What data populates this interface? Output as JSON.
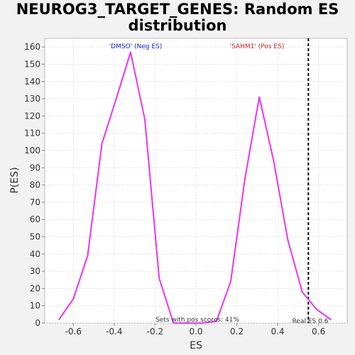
{
  "chart_data": {
    "type": "line",
    "title_line1": "NEUROG3_TARGET_GENES: Random ES",
    "title_line2": "distribution",
    "xlabel": "ES",
    "ylabel": "P(ES)",
    "xlim": [
      -0.74,
      0.74
    ],
    "ylim": [
      0,
      165
    ],
    "xticks": [
      -0.6,
      -0.4,
      -0.2,
      0.0,
      0.2,
      0.4,
      0.6
    ],
    "xtick_labels": [
      "-0.6",
      "-0.4",
      "-0.2",
      "0.0",
      "0.2",
      "0.4",
      "0.6"
    ],
    "yticks": [
      0,
      10,
      20,
      30,
      40,
      50,
      60,
      70,
      80,
      90,
      100,
      110,
      120,
      130,
      140,
      150,
      160
    ],
    "grid": true,
    "series": [
      {
        "color": "#ee33ee",
        "x": [
          -0.67,
          -0.6,
          -0.53,
          -0.46,
          -0.39,
          -0.32,
          -0.25,
          -0.18,
          -0.11,
          -0.04,
          0.03,
          0.1,
          0.17,
          0.24,
          0.31,
          0.38,
          0.45,
          0.52,
          0.59,
          0.66
        ],
        "y": [
          2,
          14,
          39,
          104,
          130,
          157,
          118,
          26,
          0,
          0,
          0,
          1,
          24,
          84,
          131,
          94,
          48,
          18,
          8,
          2
        ]
      }
    ],
    "reference_line": {
      "x": 0.55,
      "style": "dashed",
      "color": "#000000"
    },
    "annotations": {
      "neg_label": "'DMSO' (Neg ES)",
      "neg_color": "#2222cc",
      "pos_label": "'SAHM1' (Pos ES)",
      "pos_color": "#cc2222",
      "pos_scores": "Sets with pos scores: 41%",
      "real_es": "Real ES 0.6"
    }
  }
}
